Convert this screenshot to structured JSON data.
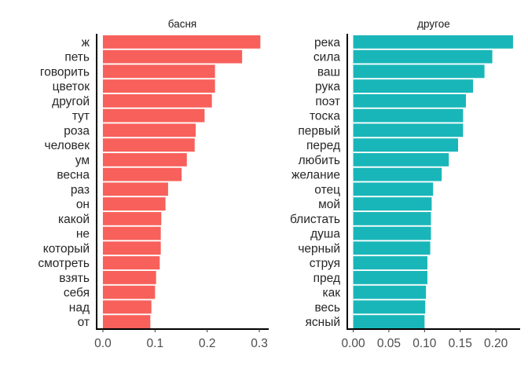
{
  "chart_data": [
    {
      "type": "bar",
      "orientation": "horizontal",
      "title": "басня",
      "color": "#F8605B",
      "categories": [
        "ж",
        "петь",
        "говорить",
        "цветок",
        "другой",
        "тут",
        "роза",
        "человек",
        "ум",
        "весна",
        "раз",
        "он",
        "какой",
        "не",
        "который",
        "смотреть",
        "взять",
        "себя",
        "над",
        "от"
      ],
      "values": [
        0.302,
        0.267,
        0.215,
        0.215,
        0.209,
        0.195,
        0.178,
        0.176,
        0.161,
        0.151,
        0.125,
        0.12,
        0.112,
        0.111,
        0.111,
        0.109,
        0.102,
        0.1,
        0.093,
        0.091
      ],
      "xlim": [
        -0.012,
        0.318
      ],
      "xticks": [
        "0.0",
        "0.1",
        "0.2",
        "0.3"
      ],
      "xtick_values": [
        0.0,
        0.1,
        0.2,
        0.3
      ]
    },
    {
      "type": "bar",
      "orientation": "horizontal",
      "title": "другое",
      "color": "#19B6B9",
      "categories": [
        "река",
        "сила",
        "ваш",
        "рука",
        "поэт",
        "тоска",
        "первый",
        "перед",
        "любить",
        "желание",
        "отец",
        "мой",
        "блистать",
        "душа",
        "черный",
        "струя",
        "пред",
        "как",
        "весь",
        "ясный"
      ],
      "values": [
        0.224,
        0.195,
        0.184,
        0.168,
        0.158,
        0.154,
        0.154,
        0.147,
        0.134,
        0.124,
        0.112,
        0.11,
        0.109,
        0.109,
        0.108,
        0.104,
        0.104,
        0.102,
        0.101,
        0.1
      ],
      "xlim": [
        -0.0083,
        0.234
      ],
      "xticks": [
        "0.00",
        "0.05",
        "0.10",
        "0.15",
        "0.20"
      ],
      "xtick_values": [
        0.0,
        0.05,
        0.1,
        0.15,
        0.2
      ]
    }
  ]
}
